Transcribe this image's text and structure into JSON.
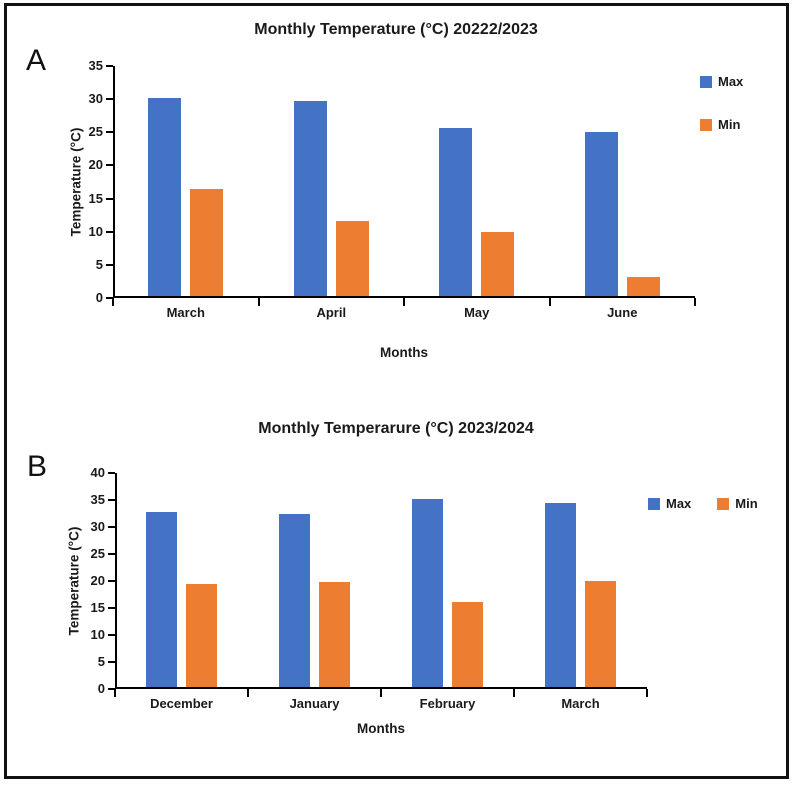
{
  "panels": [
    {
      "label": "A"
    },
    {
      "label": "B"
    }
  ],
  "colors": {
    "max_series": "#4472C4",
    "min_series": "#ED7D31",
    "axis": "#000000",
    "frame_border": "#111111"
  },
  "chart_data": [
    {
      "type": "bar",
      "title": "Monthly Temperature (°C) 20222/2023",
      "categories": [
        "March",
        "April",
        "May",
        "June"
      ],
      "series": [
        {
          "name": "Max",
          "color": "#4472C4",
          "values": [
            30.2,
            29.7,
            25.7,
            25.0
          ]
        },
        {
          "name": "Min",
          "color": "#ED7D31",
          "values": [
            16.5,
            11.6,
            9.9,
            3.2
          ]
        }
      ],
      "xlabel": "Months",
      "ylabel": "Temperature (°C)",
      "ylim": [
        0,
        35
      ],
      "yticks": [
        0,
        5,
        10,
        15,
        20,
        25,
        30,
        35
      ],
      "grid": false,
      "legend_position": "right-vertical",
      "legend_entries": [
        "Max",
        "Min"
      ]
    },
    {
      "type": "bar",
      "title": "Monthly Temperarure (°C) 2023/2024",
      "categories": [
        "December",
        "January",
        "February",
        "March"
      ],
      "series": [
        {
          "name": "Max",
          "color": "#4472C4",
          "values": [
            32.8,
            32.5,
            35.2,
            34.5
          ]
        },
        {
          "name": "Min",
          "color": "#ED7D31",
          "values": [
            19.5,
            19.9,
            16.2,
            20.0
          ]
        }
      ],
      "xlabel": "Months",
      "ylabel": "Temperature (°C)",
      "ylim": [
        0,
        40
      ],
      "yticks": [
        0,
        5,
        10,
        15,
        20,
        25,
        30,
        35,
        40
      ],
      "grid": false,
      "legend_position": "right-horizontal",
      "legend_entries": [
        "Max",
        "Min"
      ]
    }
  ]
}
